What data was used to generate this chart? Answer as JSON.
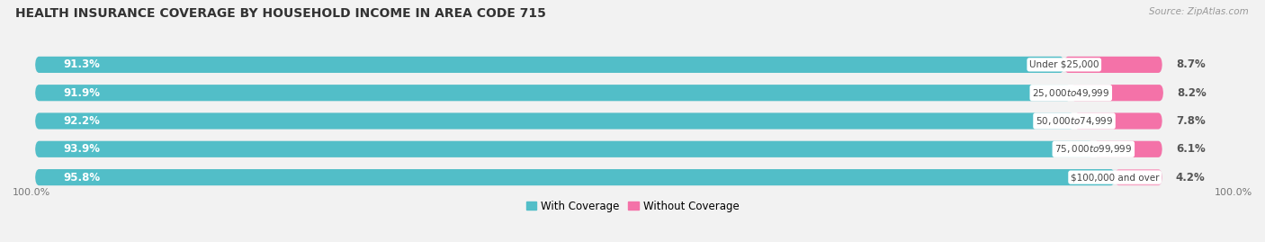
{
  "title": "HEALTH INSURANCE COVERAGE BY HOUSEHOLD INCOME IN AREA CODE 715",
  "source": "Source: ZipAtlas.com",
  "categories": [
    "Under $25,000",
    "$25,000 to $49,999",
    "$50,000 to $74,999",
    "$75,000 to $99,999",
    "$100,000 and over"
  ],
  "with_coverage": [
    91.3,
    91.9,
    92.2,
    93.9,
    95.8
  ],
  "without_coverage": [
    8.7,
    8.2,
    7.8,
    6.1,
    4.2
  ],
  "color_with": "#52bec8",
  "color_without": "#f472a8",
  "color_without_last": "#f7a8c8",
  "background_color": "#f2f2f2",
  "bar_background": "#e8e8ea",
  "title_fontsize": 10,
  "label_fontsize": 8.5,
  "bar_height": 0.58,
  "legend_labels": [
    "With Coverage",
    "Without Coverage"
  ],
  "left_axis_label": "100.0%",
  "right_axis_label": "100.0%",
  "total_bar_pct": 100
}
